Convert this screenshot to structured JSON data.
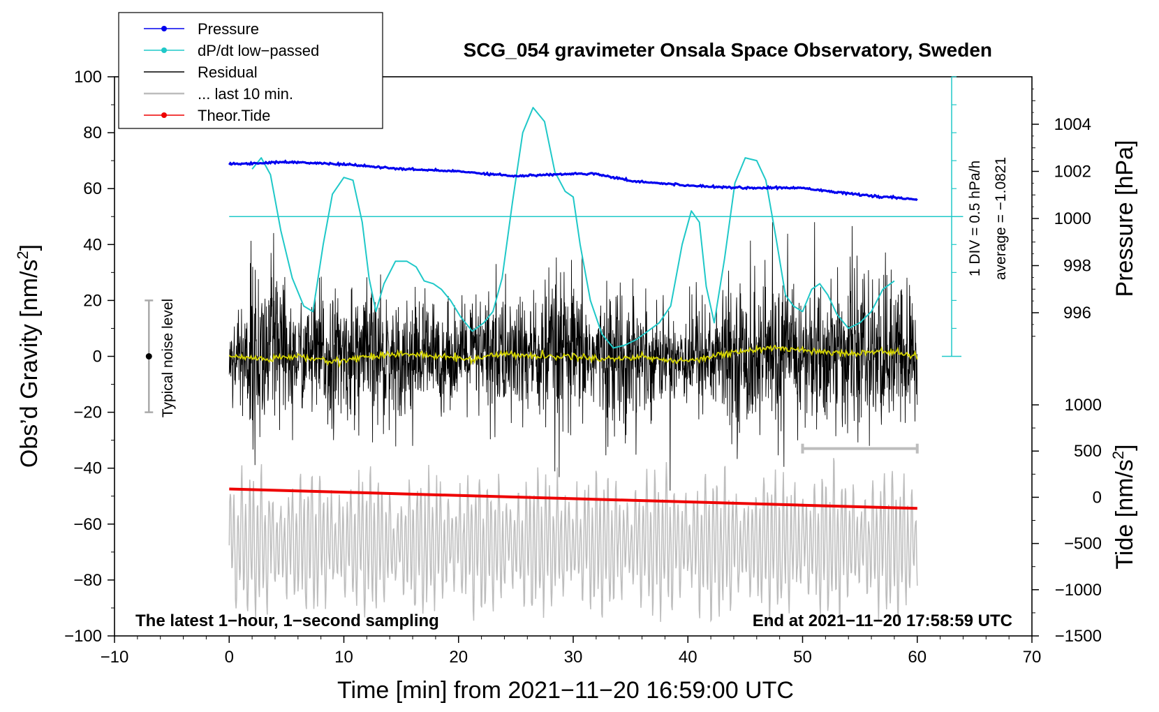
{
  "chart_data": {
    "type": "line",
    "title": "SCG_054 gravimeter Onsala Space Observatory, Sweden",
    "xlabel": "Time [min] from 2021−11−20 16:59:00 UTC",
    "ylabel_left_prefix": "Obs’d Gravity [nm/s",
    "ylabel_left_sup": "2",
    "ylabel_left_suffix": "]",
    "ylabel_pressure": "Pressure [hPa]",
    "ylabel_tide_prefix": "Tide [nm/s",
    "ylabel_tide_sup": "2",
    "ylabel_tide_suffix": "]",
    "xlim": [
      -10,
      70
    ],
    "ylim": [
      -100,
      100
    ],
    "pressure_lim": [
      994,
      1006
    ],
    "tide_lim": [
      -1500,
      1000
    ],
    "x_ticks": [
      -10,
      0,
      10,
      20,
      30,
      40,
      50,
      60,
      70
    ],
    "x_tick_labels": [
      "−10",
      "0",
      "10",
      "20",
      "30",
      "40",
      "50",
      "60",
      "70"
    ],
    "y_ticks": [
      -100,
      -80,
      -60,
      -40,
      -20,
      0,
      20,
      40,
      60,
      80,
      100
    ],
    "y_tick_labels": [
      "−100",
      "−80",
      "−60",
      "−40",
      "−20",
      "0",
      "20",
      "40",
      "60",
      "80",
      "100"
    ],
    "pressure_ticks": [
      996,
      998,
      1000,
      1002,
      1004
    ],
    "pressure_tick_labels": [
      "996",
      "998",
      "1000",
      "1002",
      "1004"
    ],
    "tide_ticks": [
      -1500,
      -1000,
      -500,
      0,
      500,
      1000
    ],
    "tide_tick_labels": [
      "−1500",
      "−1000",
      "−500",
      "0",
      "500",
      "1000"
    ],
    "legend": {
      "placement": "top-left",
      "entries": [
        {
          "label": "Pressure",
          "color": "#0000ee",
          "marker": true
        },
        {
          "label": "dP/dt low−passed",
          "color": "#1fc8c8",
          "marker": true
        },
        {
          "label": "Residual",
          "color": "#000000",
          "marker": false
        },
        {
          "label": "... last 10 min.",
          "color": "#bdbdbd",
          "marker": false
        },
        {
          "label": "Theor.Tide",
          "color": "#ee0000",
          "marker": true
        }
      ]
    },
    "series": [
      {
        "name": "Pressure",
        "color": "#0000ee",
        "axis": "pressure",
        "x": [
          0,
          5,
          10,
          15,
          20,
          25,
          30,
          32,
          35,
          40,
          45,
          50,
          55,
          60
        ],
        "values": [
          1002.3,
          1002.4,
          1002.3,
          1002.1,
          1002.0,
          1001.8,
          1001.9,
          1001.9,
          1001.6,
          1001.4,
          1001.3,
          1001.3,
          1001.0,
          1000.8
        ]
      },
      {
        "name": "dP/dt low-passed",
        "color": "#1fc8c8",
        "axis": "dpdt_div",
        "baseline_value": 50,
        "div_scale_text": "1 DIV = 0.5 hPa/h",
        "average_text": "average = −1.0821",
        "x": [
          2,
          2.8,
          3.6,
          4.5,
          5.5,
          6.5,
          7.3,
          8.2,
          9,
          10,
          10.8,
          11.6,
          12.2,
          12.8,
          13.5,
          14.5,
          15.5,
          16.3,
          17,
          17.8,
          18.5,
          19.3,
          20.2,
          21.2,
          22.2,
          23,
          23.8,
          24.7,
          25.6,
          26.5,
          27.5,
          28.4,
          29.3,
          30,
          30.6,
          31.5,
          32.5,
          33.5,
          34.5,
          35.5,
          36.5,
          37.5,
          38.5,
          39.5,
          40.3,
          41,
          41.6,
          42.3,
          43.2,
          44.1,
          45,
          46,
          46.8,
          47.7,
          48.5,
          49.2,
          50,
          50.8,
          51.5,
          52.2,
          53,
          54,
          55,
          56,
          57,
          58
        ],
        "values": [
          67,
          71,
          65,
          45,
          28,
          18,
          16,
          40,
          58,
          64,
          63,
          48,
          28,
          16,
          26,
          34,
          34,
          32,
          27,
          26,
          24,
          20,
          14,
          9,
          12,
          16,
          28,
          55,
          80,
          89,
          84,
          66,
          59,
          57,
          40,
          20,
          8,
          3,
          4,
          6,
          9,
          12,
          18,
          40,
          52,
          48,
          25,
          12,
          35,
          62,
          71,
          70,
          63,
          42,
          22,
          18,
          16,
          24,
          26,
          22,
          15,
          10,
          12,
          16,
          24,
          27
        ]
      },
      {
        "name": "Residual",
        "color": "#000000",
        "axis": "gravity",
        "x_range": [
          0,
          60
        ],
        "amplitude_envelope": [
          {
            "x": 0,
            "a": 12
          },
          {
            "x": 2,
            "a": 35
          },
          {
            "x": 4,
            "a": 38
          },
          {
            "x": 6,
            "a": 20
          },
          {
            "x": 8,
            "a": 30
          },
          {
            "x": 10,
            "a": 25
          },
          {
            "x": 12,
            "a": 30
          },
          {
            "x": 14,
            "a": 22
          },
          {
            "x": 16,
            "a": 26
          },
          {
            "x": 20,
            "a": 18
          },
          {
            "x": 23,
            "a": 30
          },
          {
            "x": 26,
            "a": 25
          },
          {
            "x": 29,
            "a": 35
          },
          {
            "x": 32,
            "a": 22
          },
          {
            "x": 34,
            "a": 30
          },
          {
            "x": 38,
            "a": 18
          },
          {
            "x": 42,
            "a": 25
          },
          {
            "x": 46,
            "a": 32
          },
          {
            "x": 50,
            "a": 28
          },
          {
            "x": 54,
            "a": 30
          },
          {
            "x": 58,
            "a": 32
          },
          {
            "x": 60,
            "a": 28
          }
        ]
      },
      {
        "name": "Residual (smoothed)",
        "color": "#d4d400",
        "axis": "gravity",
        "x": [
          0,
          3,
          6,
          9,
          12,
          15,
          18,
          21,
          24,
          27,
          30,
          33,
          36,
          39,
          42,
          45,
          48,
          51,
          54,
          57,
          60
        ],
        "values": [
          0,
          -1,
          0,
          -2,
          0,
          1,
          0,
          -1,
          1,
          0,
          0,
          -1,
          0,
          -2,
          0,
          2,
          3,
          2,
          1,
          2,
          0
        ]
      },
      {
        "name": "... last 10 min.",
        "color": "#bdbdbd",
        "axis": "gravity",
        "x_range": [
          0,
          60
        ],
        "baseline_value": -67,
        "bracket_x": [
          50,
          60
        ],
        "bracket_y": -33
      },
      {
        "name": "Theor.Tide",
        "color": "#ee0000",
        "axis": "tide",
        "x": [
          0,
          10,
          20,
          30,
          40,
          50,
          60
        ],
        "values": [
          90,
          55,
          20,
          -15,
          -50,
          -85,
          -120
        ]
      }
    ],
    "noise_indicator": {
      "label": "Typical noise level",
      "x": -7,
      "center": 0,
      "low": -20,
      "high": 20
    },
    "annotations": {
      "bottom_left": "The latest 1−hour, 1−second sampling",
      "bottom_right": "End at 2021−11−20 17:58:59 UTC"
    }
  }
}
